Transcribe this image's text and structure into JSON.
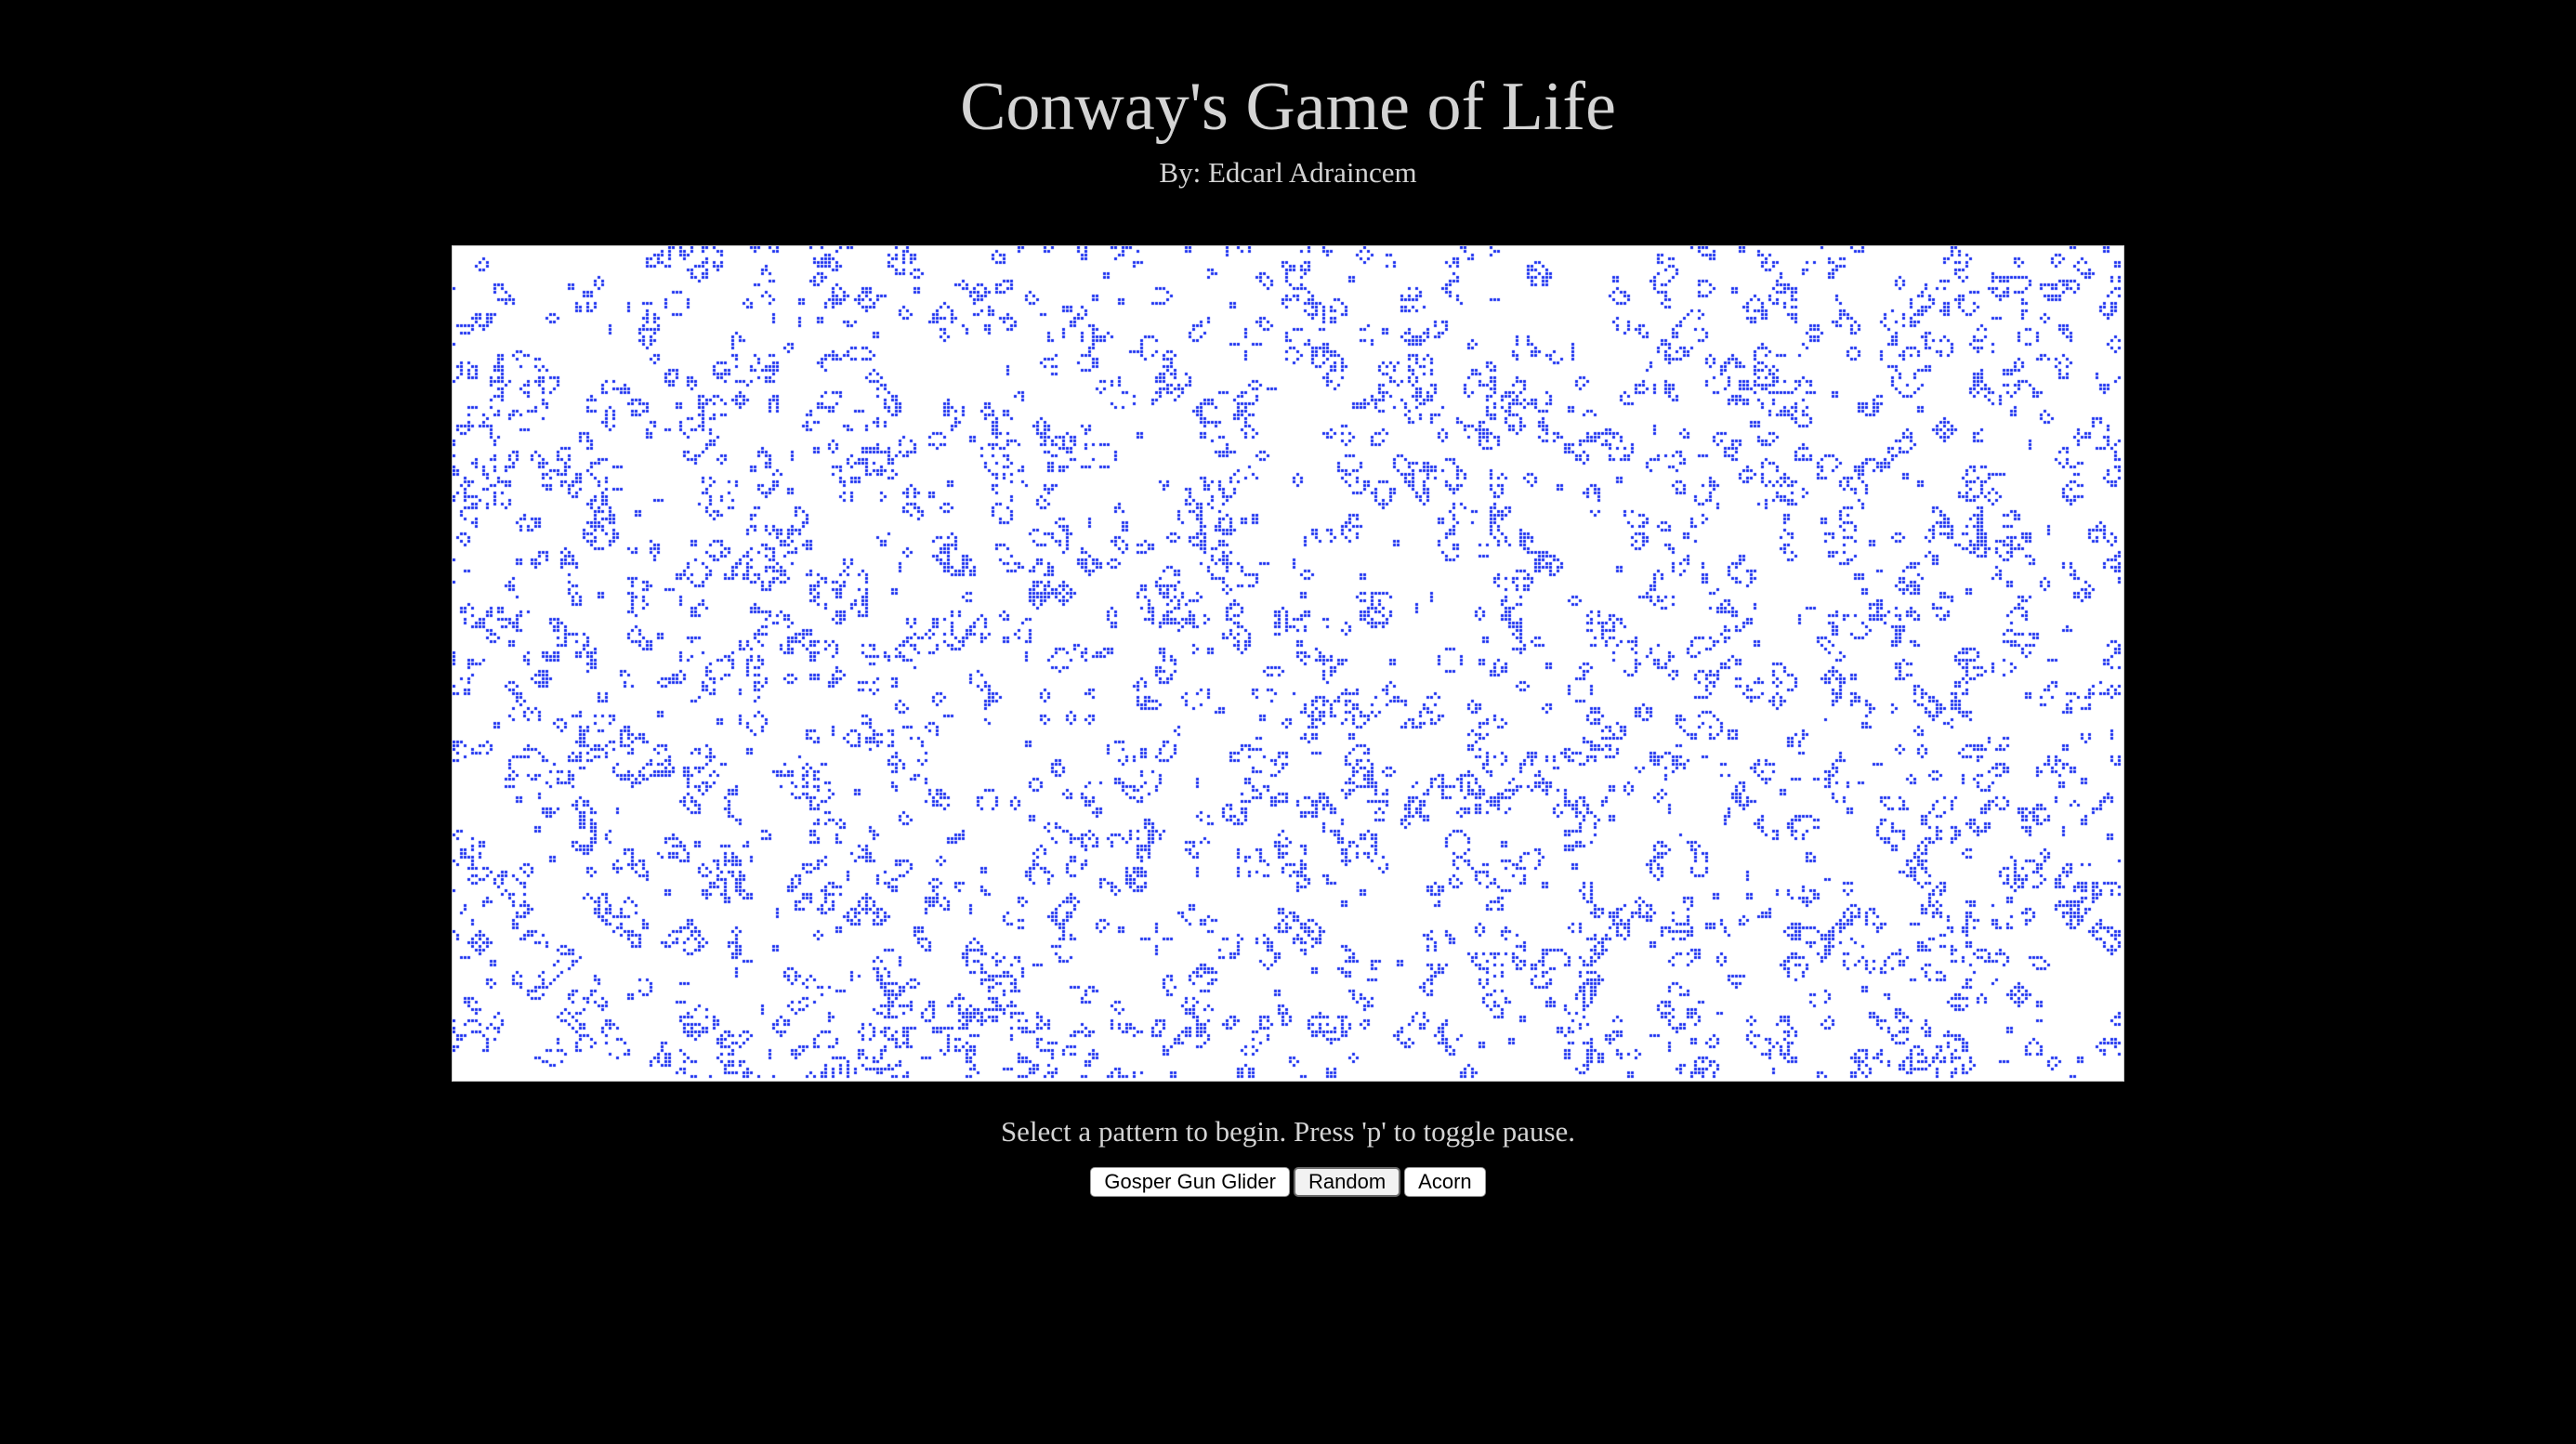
{
  "header": {
    "title": "Conway's Game of Life",
    "byline": "By: Edcarl Adraincem"
  },
  "board": {
    "background_color": "#ffffff",
    "cell_color": "#1a2ff0",
    "state": "random-pattern"
  },
  "instructions": "Select a pattern to begin. Press 'p' to toggle pause.",
  "controls": {
    "buttons": [
      {
        "label": "Gosper Gun Glider"
      },
      {
        "label": "Random",
        "active": true
      },
      {
        "label": "Acorn"
      }
    ]
  }
}
